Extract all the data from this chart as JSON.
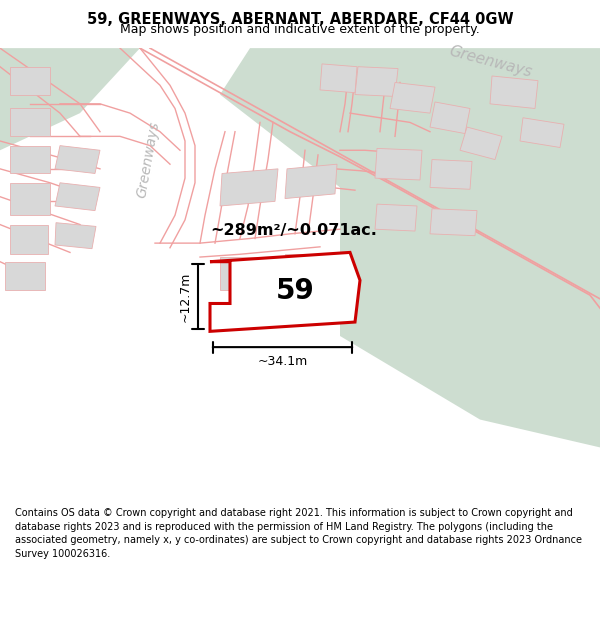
{
  "title": "59, GREENWAYS, ABERNANT, ABERDARE, CF44 0GW",
  "subtitle": "Map shows position and indicative extent of the property.",
  "footer": "Contains OS data © Crown copyright and database right 2021. This information is subject to Crown copyright and database rights 2023 and is reproduced with the permission of HM Land Registry. The polygons (including the associated geometry, namely x, y co-ordinates) are subject to Crown copyright and database rights 2023 Ordnance Survey 100026316.",
  "map_bg": "#ffffff",
  "footer_bg": "#e8ede8",
  "area_text": "~289m²/~0.071ac.",
  "plot_number": "59",
  "dim_width": "~34.1m",
  "dim_height": "~12.7m",
  "road_label_left": "Greenways",
  "road_label_top": "Greenways",
  "road_color": "#f0a0a0",
  "road_lw": 1.0,
  "plot_fill": "#ffffff",
  "plot_edge": "#cc0000",
  "building_fill": "#d8d8d8",
  "building_edge": "#e8b0b0",
  "green_color": "#cdddd0",
  "road_label_color": "#b8b8b8"
}
